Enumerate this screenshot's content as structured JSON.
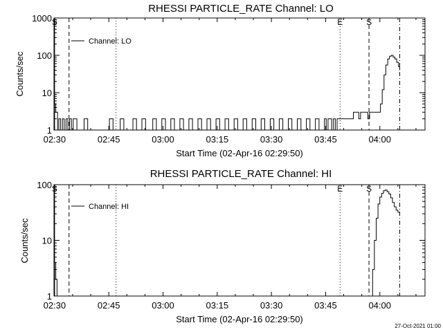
{
  "chart_data": [
    {
      "type": "line",
      "title": "RHESSI PARTICLE_RATE Channel: LO",
      "xlabel": "Start Time (02-Apr-16 02:29:50)",
      "ylabel": "Counts/sec",
      "yscale": "log",
      "ylim": [
        1,
        1000
      ],
      "xlim": [
        "02:29:50",
        "04:12:30"
      ],
      "x_tick_labels": [
        "02:30",
        "02:45",
        "03:00",
        "03:15",
        "03:30",
        "03:45",
        "04:00"
      ],
      "y_tick_labels": [
        "1",
        "10",
        "100",
        "1000"
      ],
      "legend": {
        "entries": [
          "Channel: LO"
        ],
        "placement": "top-left"
      },
      "markers": [
        {
          "label": "S",
          "time": "02:30:00",
          "style": "solid"
        },
        {
          "label": "",
          "time": "02:34:00",
          "style": "dashed"
        },
        {
          "label": "",
          "time": "02:47:00",
          "style": "dotted"
        },
        {
          "label": "E",
          "time": "03:49:00",
          "style": "dotted"
        },
        {
          "label": "S",
          "time": "03:57:00",
          "style": "dashed"
        },
        {
          "label": "",
          "time": "04:05:30",
          "style": "dashdot"
        }
      ],
      "series": [
        {
          "x": [
            "02:30:00",
            "02:30:20",
            "02:30:50",
            "02:31:10",
            "02:31:40",
            "02:32:10",
            "02:32:40",
            "02:33:10",
            "02:33:40",
            "02:34:10",
            "02:34:40",
            "02:35:10",
            "02:35:40",
            "02:36:10",
            "02:37:40",
            "02:38:10",
            "02:38:40",
            "02:39:10",
            "02:39:40",
            "02:40:10",
            "02:44:40",
            "02:45:10",
            "02:45:40",
            "02:46:10",
            "02:47:40",
            "02:48:10",
            "02:48:40",
            "02:49:10",
            "02:51:10",
            "02:51:40",
            "02:52:10",
            "02:52:40",
            "02:53:40",
            "02:54:10",
            "02:54:40",
            "02:55:10",
            "02:56:40",
            "02:57:10",
            "02:57:40",
            "02:58:10",
            "02:59:10",
            "02:59:40",
            "03:00:10",
            "03:00:40",
            "03:01:40",
            "03:02:10",
            "03:02:40",
            "03:03:10",
            "03:04:10",
            "03:04:40",
            "03:05:10",
            "03:05:40",
            "03:06:40",
            "03:07:10",
            "03:07:40",
            "03:08:10",
            "03:09:10",
            "03:09:40",
            "03:10:10",
            "03:10:40",
            "03:11:40",
            "03:12:10",
            "03:12:40",
            "03:13:10",
            "03:14:10",
            "03:14:40",
            "03:15:10",
            "03:15:40",
            "03:16:40",
            "03:17:10",
            "03:17:40",
            "03:18:10",
            "03:19:10",
            "03:19:40",
            "03:20:10",
            "03:20:40",
            "03:21:40",
            "03:22:10",
            "03:22:40",
            "03:23:10",
            "03:24:10",
            "03:24:40",
            "03:25:10",
            "03:25:40",
            "03:26:40",
            "03:27:10",
            "03:27:40",
            "03:28:10",
            "03:29:10",
            "03:29:40",
            "03:30:10",
            "03:30:40",
            "03:31:40",
            "03:32:10",
            "03:32:40",
            "03:33:10",
            "03:34:10",
            "03:34:40",
            "03:35:10",
            "03:35:40",
            "03:36:40",
            "03:37:10",
            "03:37:40",
            "03:38:10",
            "03:39:10",
            "03:39:40",
            "03:40:10",
            "03:40:40",
            "03:41:40",
            "03:42:10",
            "03:42:40",
            "03:43:10",
            "03:44:10",
            "03:44:40",
            "03:45:10",
            "03:45:40",
            "03:46:40",
            "03:47:10",
            "03:47:40",
            "03:48:10",
            "03:48:40",
            "03:49:10",
            "03:49:40",
            "03:50:10",
            "03:50:40",
            "03:51:10",
            "03:51:40",
            "03:52:10",
            "03:52:40",
            "03:53:10",
            "03:53:40",
            "03:54:10",
            "03:54:40",
            "03:55:10",
            "03:55:40",
            "03:56:10",
            "03:56:40",
            "03:57:10",
            "03:57:40",
            "03:58:10",
            "03:58:40",
            "03:59:10",
            "03:59:40",
            "04:00:10",
            "04:00:40",
            "04:01:10",
            "04:01:40",
            "04:02:10",
            "04:02:40",
            "04:03:10",
            "04:03:40",
            "04:04:10",
            "04:04:40",
            "04:05:10",
            "04:05:30"
          ],
          "y": [
            5,
            3,
            1,
            2,
            1,
            2,
            1,
            2,
            1,
            2,
            1,
            2,
            2,
            1,
            1,
            2,
            2,
            1,
            1,
            1,
            1,
            2,
            2,
            1,
            1,
            2,
            2,
            1,
            1,
            2,
            2,
            1,
            1,
            2,
            2,
            1,
            1,
            2,
            2,
            1,
            1,
            2,
            2,
            1,
            1,
            2,
            2,
            1,
            1,
            2,
            2,
            1,
            1,
            2,
            2,
            1,
            1,
            2,
            2,
            1,
            1,
            2,
            2,
            1,
            1,
            2,
            2,
            1,
            1,
            2,
            2,
            1,
            1,
            2,
            2,
            1,
            1,
            2,
            2,
            1,
            1,
            2,
            2,
            1,
            1,
            2,
            2,
            1,
            1,
            2,
            2,
            1,
            1,
            2,
            2,
            1,
            1,
            2,
            2,
            1,
            1,
            2,
            2,
            1,
            1,
            2,
            2,
            1,
            1,
            2,
            2,
            1,
            1,
            2,
            1,
            2,
            1,
            2,
            1,
            2,
            2,
            2,
            2,
            2,
            2,
            2,
            2,
            2,
            3,
            3,
            3,
            2,
            3,
            3,
            3,
            3,
            2,
            3,
            3,
            3,
            3,
            3,
            3,
            5,
            12,
            30,
            55,
            80,
            95,
            100,
            90,
            80,
            65,
            50,
            40
          ]
        }
      ]
    },
    {
      "type": "line",
      "title": "RHESSI PARTICLE_RATE Channel: HI",
      "xlabel": "Start Time (02-Apr-16 02:29:50)",
      "ylabel": "Counts/sec",
      "yscale": "log",
      "ylim": [
        1,
        100
      ],
      "xlim": [
        "02:29:50",
        "04:12:30"
      ],
      "x_tick_labels": [
        "02:30",
        "02:45",
        "03:00",
        "03:15",
        "03:30",
        "03:45",
        "04:00"
      ],
      "y_tick_labels": [
        "1",
        "10",
        "100"
      ],
      "legend": {
        "entries": [
          "Channel: HI"
        ],
        "placement": "top-left"
      },
      "markers": [
        {
          "label": "S",
          "time": "02:30:00",
          "style": "solid"
        },
        {
          "label": "",
          "time": "02:34:00",
          "style": "dashed"
        },
        {
          "label": "",
          "time": "02:47:00",
          "style": "dotted"
        },
        {
          "label": "E",
          "time": "03:49:00",
          "style": "dotted"
        },
        {
          "label": "S",
          "time": "03:57:00",
          "style": "dashed"
        },
        {
          "label": "",
          "time": "04:05:30",
          "style": "dashdot"
        }
      ],
      "series": [
        {
          "x": [
            "02:30:00",
            "02:30:20",
            "02:30:40",
            "02:31:00",
            "02:31:20",
            "03:57:00",
            "03:57:30",
            "03:58:00",
            "03:58:30",
            "03:59:00",
            "03:59:30",
            "04:00:00",
            "04:00:30",
            "04:01:00",
            "04:01:30",
            "04:02:00",
            "04:02:30",
            "04:03:00",
            "04:03:30",
            "04:04:00",
            "04:04:30",
            "04:05:00",
            "04:05:30"
          ],
          "y": [
            4,
            2,
            1,
            1,
            1,
            1,
            1,
            3,
            10,
            25,
            45,
            60,
            70,
            78,
            80,
            75,
            68,
            58,
            48,
            40,
            35,
            32,
            28
          ]
        }
      ]
    }
  ],
  "footer": {
    "timestamp": "27-Oct-2021 01:00"
  }
}
